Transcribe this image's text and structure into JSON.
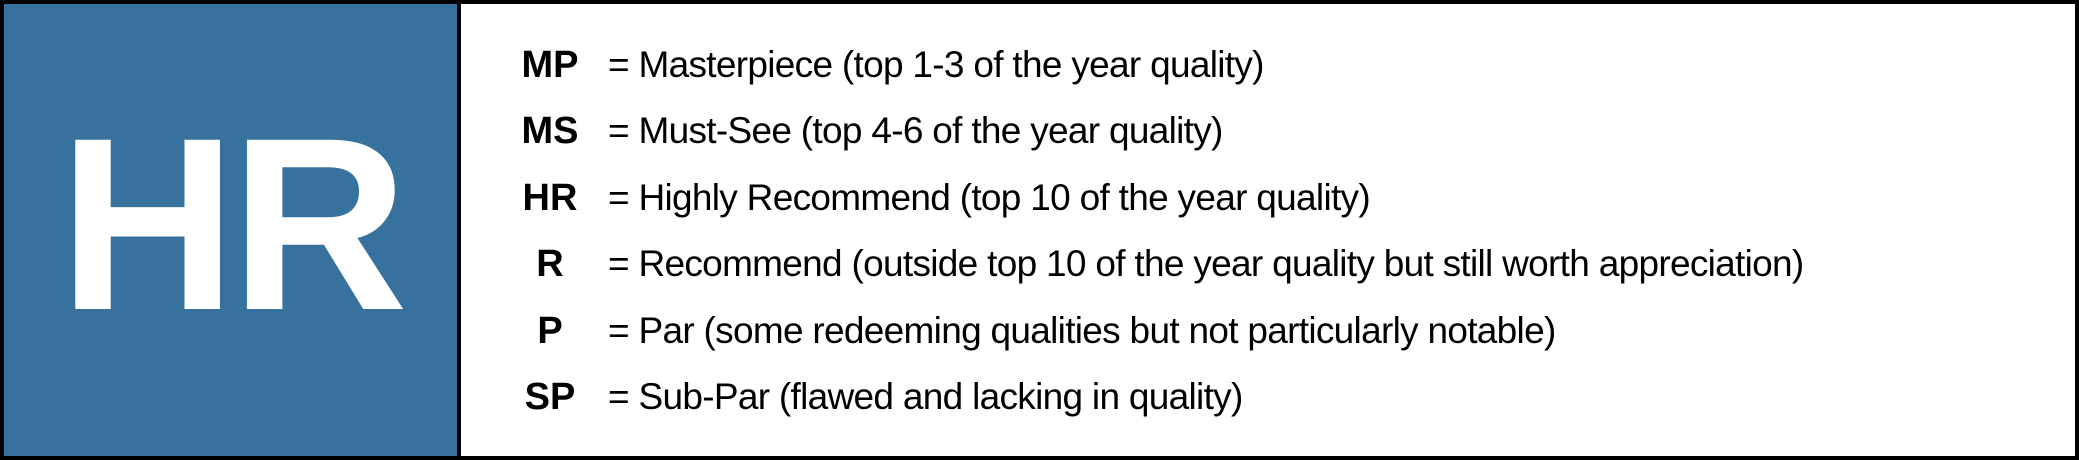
{
  "badge": {
    "label": "HR",
    "color": "#37729e"
  },
  "legend": [
    {
      "abbr": "MP",
      "desc": "= Masterpiece (top 1-3 of the year quality)"
    },
    {
      "abbr": "MS",
      "desc": "= Must-See (top 4-6 of the year quality)"
    },
    {
      "abbr": "HR",
      "desc": "= Highly Recommend (top 10 of the year quality)"
    },
    {
      "abbr": "R",
      "desc": "= Recommend (outside top 10 of the year quality but still worth appreciation)"
    },
    {
      "abbr": "P",
      "desc": "= Par (some redeeming qualities but not particularly notable)"
    },
    {
      "abbr": "SP",
      "desc": "= Sub-Par (flawed and lacking in quality)"
    }
  ]
}
